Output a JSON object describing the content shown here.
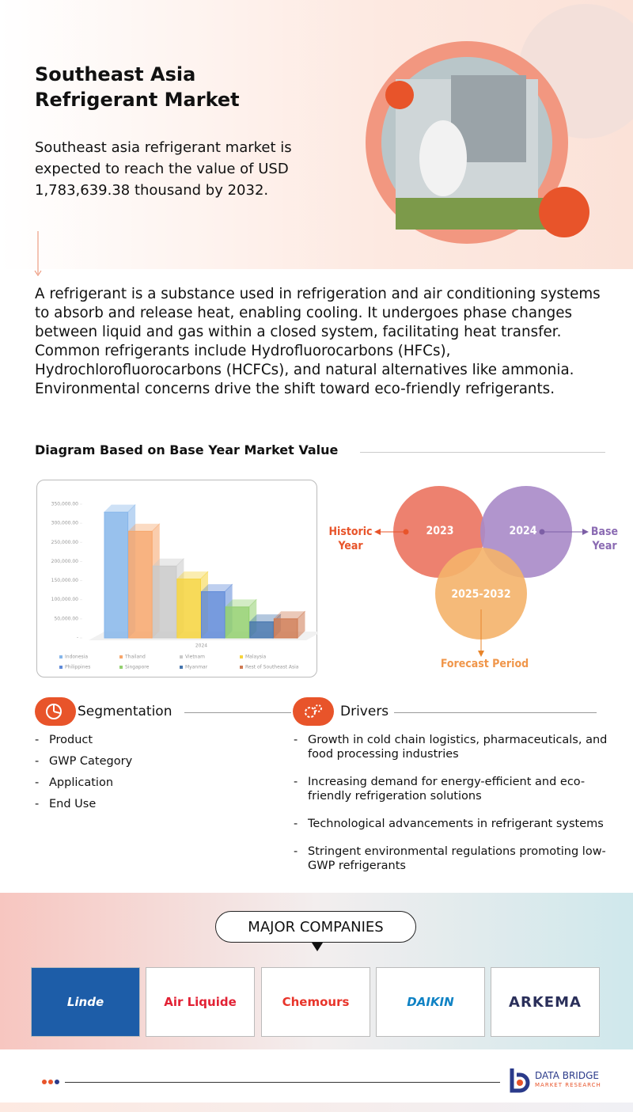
{
  "header": {
    "title": "Southeast Asia Refrigerant Market",
    "summary": "Southeast asia refrigerant market is expected to reach the value of USD 1,783,639.38  thousand by 2032."
  },
  "description": "A refrigerant is a substance used in refrigeration and air conditioning systems to absorb and release heat, enabling cooling. It undergoes phase changes between liquid and gas within a closed system, facilitating heat transfer. Common refrigerants include Hydrofluorocarbons (HFCs), Hydrochlorofluorocarbons (HCFCs), and natural alternatives like ammonia. Environmental concerns drive the shift toward eco-friendly refrigerants.",
  "diagram_heading": "Diagram Based on Base Year Market Value",
  "chart_data": {
    "type": "bar",
    "categories": [
      "2024"
    ],
    "series": [
      {
        "name": "Indonesia",
        "color": "#86b6ea",
        "values": [
          329000
        ]
      },
      {
        "name": "Thailand",
        "color": "#f7a66b",
        "values": [
          279000
        ]
      },
      {
        "name": "Vietnam",
        "color": "#c9c9c9",
        "values": [
          188000
        ]
      },
      {
        "name": "Malaysia",
        "color": "#f6d43c",
        "values": [
          154000
        ]
      },
      {
        "name": "Philippines",
        "color": "#5f8ad8",
        "values": [
          121000
        ]
      },
      {
        "name": "Singapore",
        "color": "#93d06f",
        "values": [
          81000
        ]
      },
      {
        "name": "Myanmar",
        "color": "#4474ad",
        "values": [
          42000
        ]
      },
      {
        "name": "Rest of Southeast Asia",
        "color": "#cf7a52",
        "values": [
          50000
        ]
      }
    ],
    "ylim": [
      0,
      350000
    ],
    "yticks": [
      {
        "value": 0,
        "label": "-"
      },
      {
        "value": 50000,
        "label": "50,000.00"
      },
      {
        "value": 100000,
        "label": "100,000.00"
      },
      {
        "value": 150000,
        "label": "150,000.00"
      },
      {
        "value": 200000,
        "label": "200,000.00"
      },
      {
        "value": 250000,
        "label": "250,000.00"
      },
      {
        "value": 300000,
        "label": "300,000.00"
      },
      {
        "value": 350000,
        "label": "350,000.00"
      }
    ]
  },
  "venn": {
    "historic_label": "Historic Year",
    "base_label": "Base Year",
    "forecast_label": "Forecast Period",
    "historic_year": "2023",
    "base_year": "2024",
    "forecast_years": "2025-2032"
  },
  "segmentation": {
    "title": "Segmentation",
    "items": [
      "Product",
      "GWP Category",
      "Application",
      "End Use"
    ]
  },
  "drivers": {
    "title": "Drivers",
    "items": [
      "Growth in cold chain logistics, pharmaceuticals, and food processing industries",
      "Increasing demand for energy-efficient and eco-friendly refrigeration solutions",
      "Technological advancements in refrigerant systems",
      "Stringent environmental regulations promoting low-GWP refrigerants"
    ]
  },
  "companies": {
    "title": "MAJOR COMPANIES",
    "names": [
      "Linde",
      "Air Liquide",
      "Chemours",
      "DAIKIN",
      "ARKEMA"
    ]
  },
  "footer": {
    "brand": "DATA BRIDGE",
    "tagline": "MARKET RESEARCH"
  }
}
